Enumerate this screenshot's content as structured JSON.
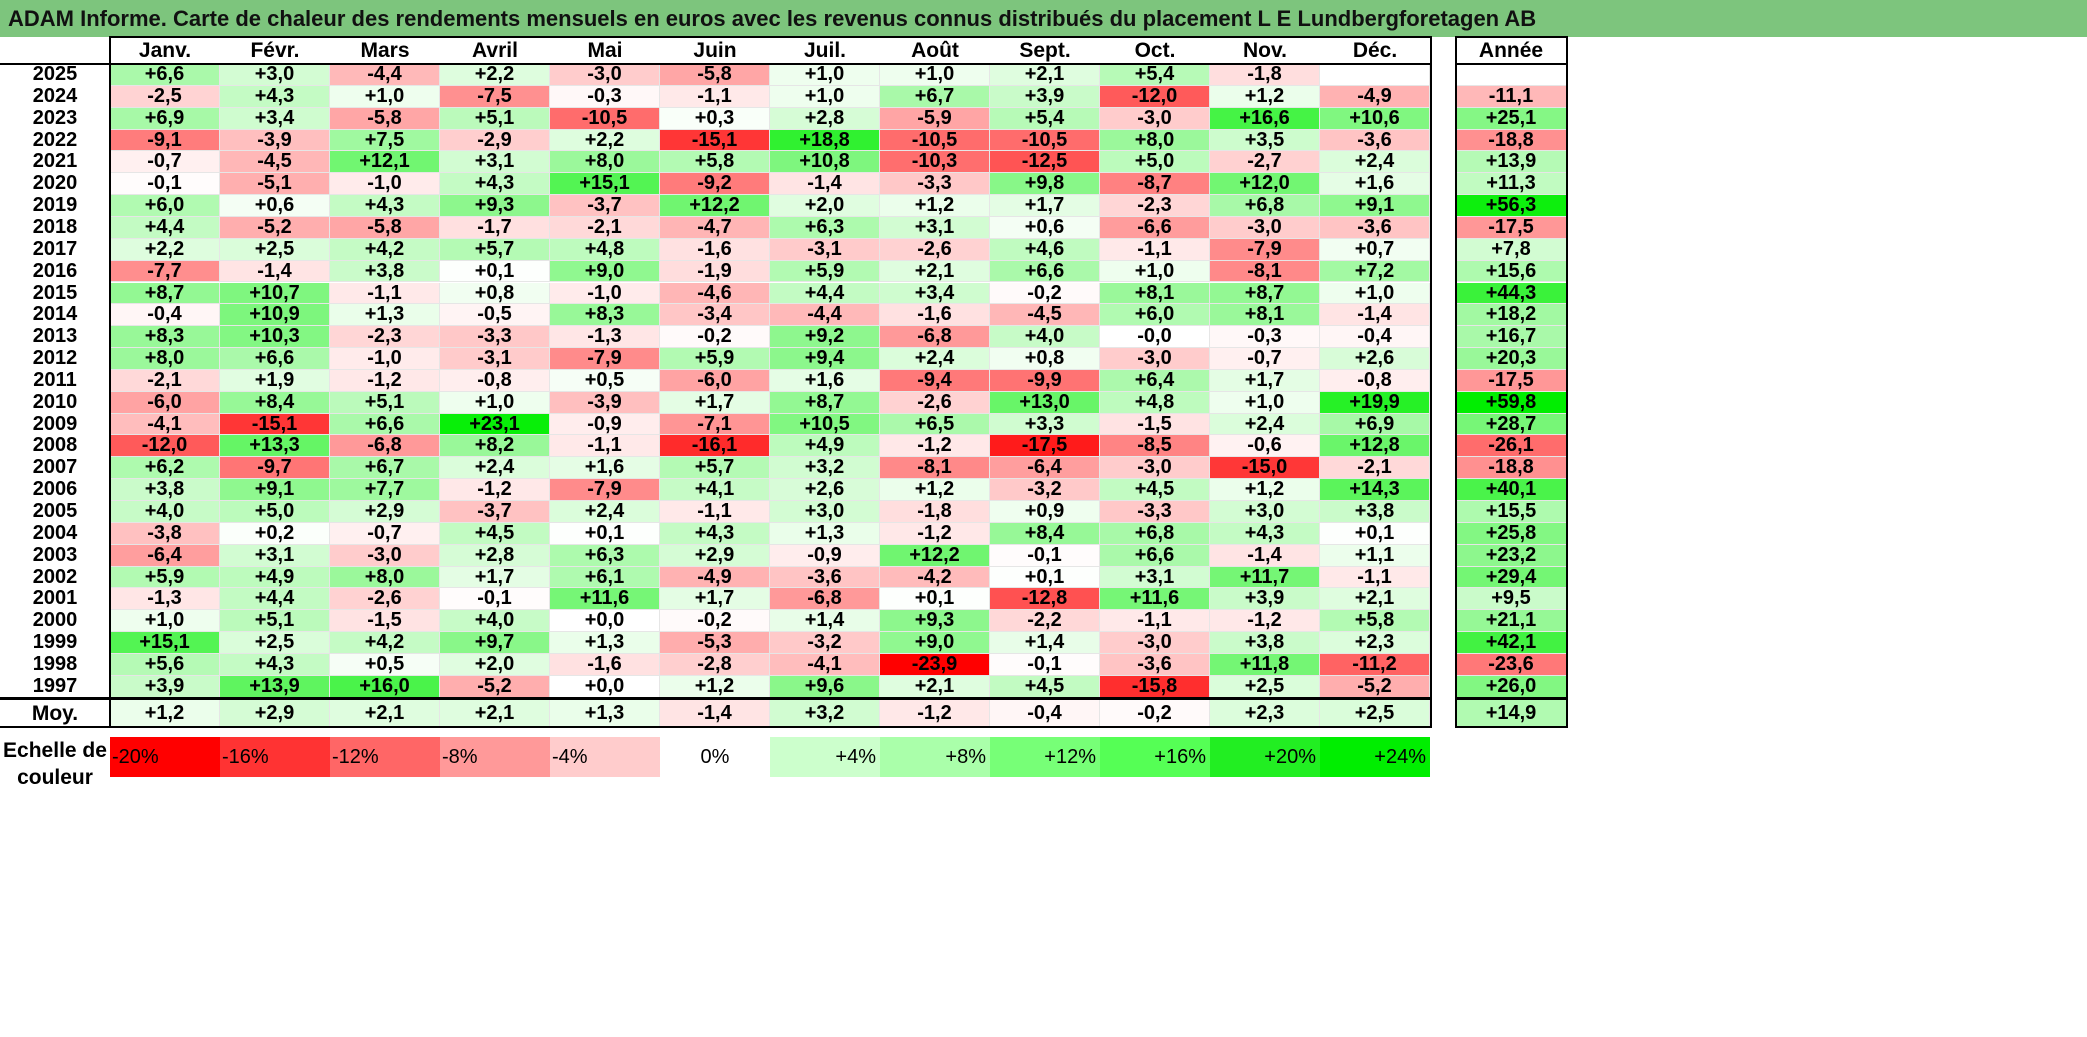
{
  "title": "ADAM Informe. Carte de chaleur des rendements mensuels en euros avec les revenus connus distribués du placement L E Lundbergforetagen AB",
  "chart_data": {
    "type": "heatmap",
    "months": [
      "Janv.",
      "Févr.",
      "Mars",
      "Avril",
      "Mai",
      "Juin",
      "Juil.",
      "Août",
      "Sept.",
      "Oct.",
      "Nov.",
      "Déc."
    ],
    "annual_header": "Année",
    "rows": [
      {
        "year": "2025",
        "m": [
          "+6,6",
          "+3,0",
          "-4,4",
          "+2,2",
          "-3,0",
          "-5,8",
          "+1,0",
          "+1,0",
          "+2,1",
          "+5,4",
          "-1,8",
          ""
        ],
        "annual": ""
      },
      {
        "year": "2024",
        "m": [
          "-2,5",
          "+4,3",
          "+1,0",
          "-7,5",
          "-0,3",
          "-1,1",
          "+1,0",
          "+6,7",
          "+3,9",
          "-12,0",
          "+1,2",
          "-4,9"
        ],
        "annual": "-11,1"
      },
      {
        "year": "2023",
        "m": [
          "+6,9",
          "+3,4",
          "-5,8",
          "+5,1",
          "-10,5",
          "+0,3",
          "+2,8",
          "-5,9",
          "+5,4",
          "-3,0",
          "+16,6",
          "+10,6"
        ],
        "annual": "+25,1"
      },
      {
        "year": "2022",
        "m": [
          "-9,1",
          "-3,9",
          "+7,5",
          "-2,9",
          "+2,2",
          "-15,1",
          "+18,8",
          "-10,5",
          "-10,5",
          "+8,0",
          "+3,5",
          "-3,6"
        ],
        "annual": "-18,8"
      },
      {
        "year": "2021",
        "m": [
          "-0,7",
          "-4,5",
          "+12,1",
          "+3,1",
          "+8,0",
          "+5,8",
          "+10,8",
          "-10,3",
          "-12,5",
          "+5,0",
          "-2,7",
          "+2,4"
        ],
        "annual": "+13,9"
      },
      {
        "year": "2020",
        "m": [
          "-0,1",
          "-5,1",
          "-1,0",
          "+4,3",
          "+15,1",
          "-9,2",
          "-1,4",
          "-3,3",
          "+9,8",
          "-8,7",
          "+12,0",
          "+1,6"
        ],
        "annual": "+11,3"
      },
      {
        "year": "2019",
        "m": [
          "+6,0",
          "+0,6",
          "+4,3",
          "+9,3",
          "-3,7",
          "+12,2",
          "+2,0",
          "+1,2",
          "+1,7",
          "-2,3",
          "+6,8",
          "+9,1"
        ],
        "annual": "+56,3"
      },
      {
        "year": "2018",
        "m": [
          "+4,4",
          "-5,2",
          "-5,8",
          "-1,7",
          "-2,1",
          "-4,7",
          "+6,3",
          "+3,1",
          "+0,6",
          "-6,6",
          "-3,0",
          "-3,6"
        ],
        "annual": "-17,5"
      },
      {
        "year": "2017",
        "m": [
          "+2,2",
          "+2,5",
          "+4,2",
          "+5,7",
          "+4,8",
          "-1,6",
          "-3,1",
          "-2,6",
          "+4,6",
          "-1,1",
          "-7,9",
          "+0,7"
        ],
        "annual": "+7,8"
      },
      {
        "year": "2016",
        "m": [
          "-7,7",
          "-1,4",
          "+3,8",
          "+0,1",
          "+9,0",
          "-1,9",
          "+5,9",
          "+2,1",
          "+6,6",
          "+1,0",
          "-8,1",
          "+7,2"
        ],
        "annual": "+15,6"
      },
      {
        "year": "2015",
        "m": [
          "+8,7",
          "+10,7",
          "-1,1",
          "+0,8",
          "-1,0",
          "-4,6",
          "+4,4",
          "+3,4",
          "-0,2",
          "+8,1",
          "+8,7",
          "+1,0"
        ],
        "annual": "+44,3"
      },
      {
        "year": "2014",
        "m": [
          "-0,4",
          "+10,9",
          "+1,3",
          "-0,5",
          "+8,3",
          "-3,4",
          "-4,4",
          "-1,6",
          "-4,5",
          "+6,0",
          "+8,1",
          "-1,4"
        ],
        "annual": "+18,2"
      },
      {
        "year": "2013",
        "m": [
          "+8,3",
          "+10,3",
          "-2,3",
          "-3,3",
          "-1,3",
          "-0,2",
          "+9,2",
          "-6,8",
          "+4,0",
          "-0,0",
          "-0,3",
          "-0,4"
        ],
        "annual": "+16,7"
      },
      {
        "year": "2012",
        "m": [
          "+8,0",
          "+6,6",
          "-1,0",
          "-3,1",
          "-7,9",
          "+5,9",
          "+9,4",
          "+2,4",
          "+0,8",
          "-3,0",
          "-0,7",
          "+2,6"
        ],
        "annual": "+20,3"
      },
      {
        "year": "2011",
        "m": [
          "-2,1",
          "+1,9",
          "-1,2",
          "-0,8",
          "+0,5",
          "-6,0",
          "+1,6",
          "-9,4",
          "-9,9",
          "+6,4",
          "+1,7",
          "-0,8"
        ],
        "annual": "-17,5"
      },
      {
        "year": "2010",
        "m": [
          "-6,0",
          "+8,4",
          "+5,1",
          "+1,0",
          "-3,9",
          "+1,7",
          "+8,7",
          "-2,6",
          "+13,0",
          "+4,8",
          "+1,0",
          "+19,9"
        ],
        "annual": "+59,8"
      },
      {
        "year": "2009",
        "m": [
          "-4,1",
          "-15,1",
          "+6,6",
          "+23,1",
          "-0,9",
          "-7,1",
          "+10,5",
          "+6,5",
          "+3,3",
          "-1,5",
          "+2,4",
          "+6,9"
        ],
        "annual": "+28,7"
      },
      {
        "year": "2008",
        "m": [
          "-12,0",
          "+13,3",
          "-6,8",
          "+8,2",
          "-1,1",
          "-16,1",
          "+4,9",
          "-1,2",
          "-17,5",
          "-8,5",
          "-0,6",
          "+12,8"
        ],
        "annual": "-26,1"
      },
      {
        "year": "2007",
        "m": [
          "+6,2",
          "-9,7",
          "+6,7",
          "+2,4",
          "+1,6",
          "+5,7",
          "+3,2",
          "-8,1",
          "-6,4",
          "-3,0",
          "-15,0",
          "-2,1"
        ],
        "annual": "-18,8"
      },
      {
        "year": "2006",
        "m": [
          "+3,8",
          "+9,1",
          "+7,7",
          "-1,2",
          "-7,9",
          "+4,1",
          "+2,6",
          "+1,2",
          "-3,2",
          "+4,5",
          "+1,2",
          "+14,3"
        ],
        "annual": "+40,1"
      },
      {
        "year": "2005",
        "m": [
          "+4,0",
          "+5,0",
          "+2,9",
          "-3,7",
          "+2,4",
          "-1,1",
          "+3,0",
          "-1,8",
          "+0,9",
          "-3,3",
          "+3,0",
          "+3,8"
        ],
        "annual": "+15,5"
      },
      {
        "year": "2004",
        "m": [
          "-3,8",
          "+0,2",
          "-0,7",
          "+4,5",
          "+0,1",
          "+4,3",
          "+1,3",
          "-1,2",
          "+8,4",
          "+6,8",
          "+4,3",
          "+0,1"
        ],
        "annual": "+25,8"
      },
      {
        "year": "2003",
        "m": [
          "-6,4",
          "+3,1",
          "-3,0",
          "+2,8",
          "+6,3",
          "+2,9",
          "-0,9",
          "+12,2",
          "-0,1",
          "+6,6",
          "-1,4",
          "+1,1"
        ],
        "annual": "+23,2"
      },
      {
        "year": "2002",
        "m": [
          "+5,9",
          "+4,9",
          "+8,0",
          "+1,7",
          "+6,1",
          "-4,9",
          "-3,6",
          "-4,2",
          "+0,1",
          "+3,1",
          "+11,7",
          "-1,1"
        ],
        "annual": "+29,4"
      },
      {
        "year": "2001",
        "m": [
          "-1,3",
          "+4,4",
          "-2,6",
          "-0,1",
          "+11,6",
          "+1,7",
          "-6,8",
          "+0,1",
          "-12,8",
          "+11,6",
          "+3,9",
          "+2,1"
        ],
        "annual": "+9,5"
      },
      {
        "year": "2000",
        "m": [
          "+1,0",
          "+5,1",
          "-1,5",
          "+4,0",
          "+0,0",
          "-0,2",
          "+1,4",
          "+9,3",
          "-2,2",
          "-1,1",
          "-1,2",
          "+5,8"
        ],
        "annual": "+21,1"
      },
      {
        "year": "1999",
        "m": [
          "+15,1",
          "+2,5",
          "+4,2",
          "+9,7",
          "+1,3",
          "-5,3",
          "-3,2",
          "+9,0",
          "+1,4",
          "-3,0",
          "+3,8",
          "+2,3"
        ],
        "annual": "+42,1"
      },
      {
        "year": "1998",
        "m": [
          "+5,6",
          "+4,3",
          "+0,5",
          "+2,0",
          "-1,6",
          "-2,8",
          "-4,1",
          "-23,9",
          "-0,1",
          "-3,6",
          "+11,8",
          "-11,2"
        ],
        "annual": "-23,6"
      },
      {
        "year": "1997",
        "m": [
          "+3,9",
          "+13,9",
          "+16,0",
          "-5,2",
          "+0,0",
          "+1,2",
          "+9,6",
          "+2,1",
          "+4,5",
          "-15,8",
          "+2,5",
          "-5,2"
        ],
        "annual": "+26,0"
      }
    ],
    "average": {
      "label": "Moy.",
      "m": [
        "+1,2",
        "+2,9",
        "+2,1",
        "+2,1",
        "+1,3",
        "-1,4",
        "+3,2",
        "-1,2",
        "-0,4",
        "-0,2",
        "+2,3",
        "+2,5"
      ],
      "annual": "+14,9"
    },
    "scale": {
      "label_line1": "Echelle de",
      "label_line2": "couleur",
      "items": [
        "-20%",
        "-16%",
        "-12%",
        "-8%",
        "-4%",
        "0%",
        "+4%",
        "+8%",
        "+12%",
        "+16%",
        "+20%",
        "+24%"
      ],
      "colors": [
        "#ff0000",
        "#ff3333",
        "#ff6666",
        "#ff9999",
        "#ffcccc",
        "#ffffff",
        "#ccffcc",
        "#aaffaa",
        "#77ff77",
        "#55ff55",
        "#22ee22",
        "#00ee00"
      ]
    },
    "color_range": {
      "min": -20,
      "max": 24
    },
    "colors": {
      "negative_max": "#ff0000",
      "neutral": "#ffffff",
      "positive_max": "#00ee00"
    },
    "title_bar_color": "#7dc57d"
  }
}
